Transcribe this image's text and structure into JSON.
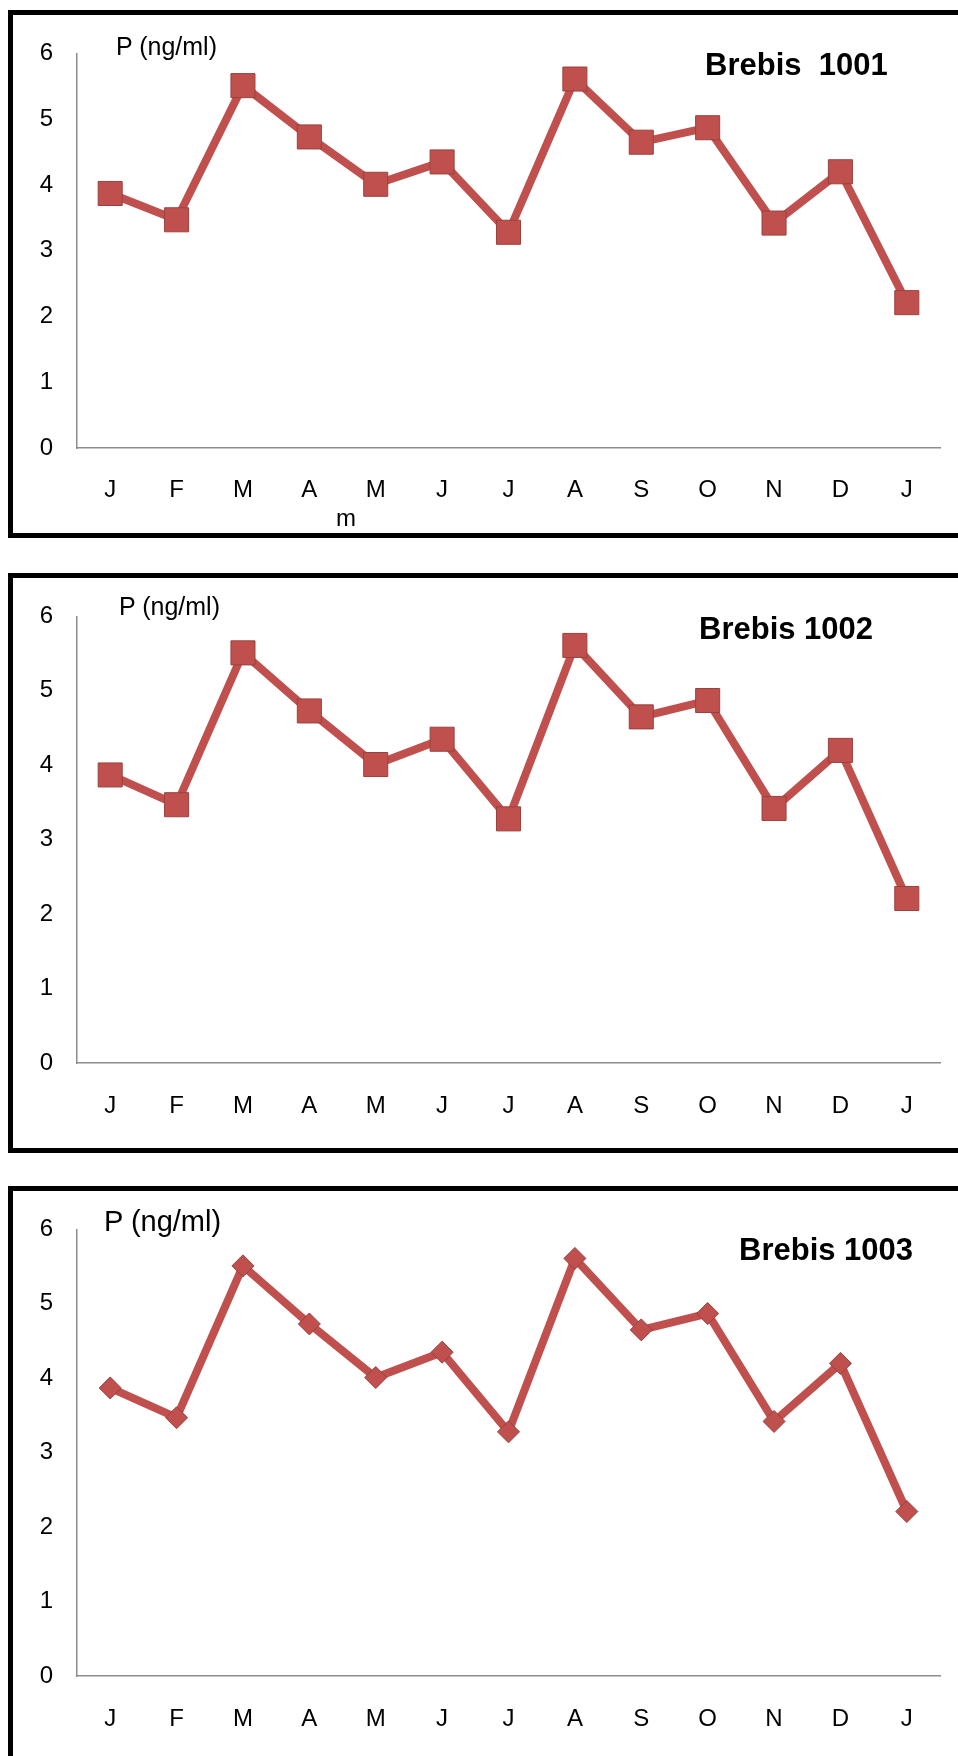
{
  "chart_data": [
    {
      "type": "line",
      "title": "Brebis  1001",
      "ylabel": "P (ng/ml)",
      "categories": [
        "J",
        "F",
        "M",
        "A",
        "M",
        "J",
        "J",
        "A",
        "S",
        "O",
        "N",
        "D",
        "J"
      ],
      "series": [
        {
          "color": "#c0504d",
          "values": [
            3.87,
            3.47,
            5.51,
            4.73,
            4.01,
            4.35,
            3.28,
            5.61,
            4.65,
            4.87,
            3.42,
            4.2,
            2.21
          ]
        }
      ],
      "ylim": [
        0,
        6
      ],
      "yticks": [
        0,
        1,
        2,
        3,
        4,
        5,
        6
      ],
      "marker": "square",
      "annotations": [
        "m"
      ]
    },
    {
      "type": "line",
      "title": "Brebis 1002",
      "ylabel": "P (ng/ml)",
      "categories": [
        "J",
        "F",
        "M",
        "A",
        "M",
        "J",
        "J",
        "A",
        "S",
        "O",
        "N",
        "D",
        "J"
      ],
      "series": [
        {
          "color": "#c0504d",
          "values": [
            3.87,
            3.47,
            5.51,
            4.73,
            4.01,
            4.35,
            3.28,
            5.61,
            4.65,
            4.87,
            3.42,
            4.2,
            2.21
          ]
        }
      ],
      "ylim": [
        0,
        6
      ],
      "yticks": [
        0,
        1,
        2,
        3,
        4,
        5,
        6
      ],
      "marker": "square"
    },
    {
      "type": "line",
      "title": "Brebis 1003",
      "ylabel": "P (ng/ml)",
      "categories": [
        "J",
        "F",
        "M",
        "A",
        "M",
        "J",
        "J",
        "A",
        "S",
        "O",
        "N",
        "D",
        "J"
      ],
      "series": [
        {
          "color": "#c0504d",
          "values": [
            3.87,
            3.47,
            5.51,
            4.73,
            4.01,
            4.35,
            3.28,
            5.61,
            4.65,
            4.87,
            3.42,
            4.2,
            2.21
          ]
        }
      ],
      "ylim": [
        0,
        6
      ],
      "yticks": [
        0,
        1,
        2,
        3,
        4,
        5,
        6
      ],
      "marker": "diamond"
    }
  ]
}
